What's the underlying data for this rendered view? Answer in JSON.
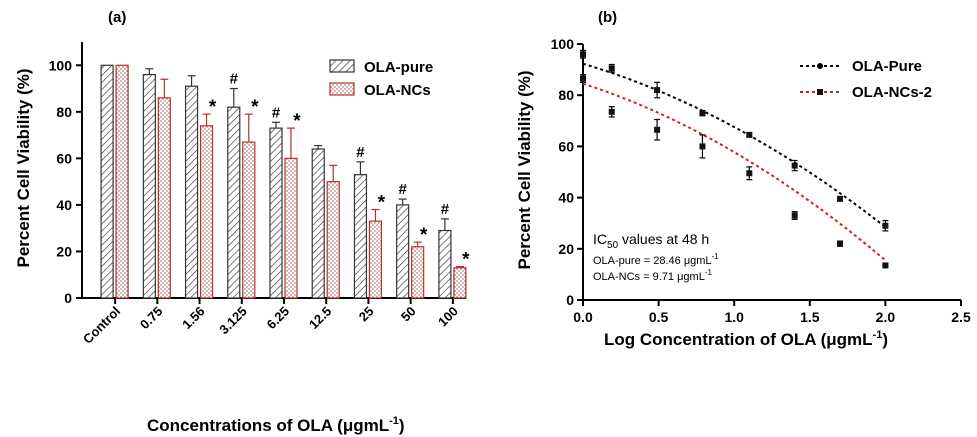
{
  "colors": {
    "pure": "#333333",
    "ncs": "#b3312a",
    "ncs_dash": "#d62020",
    "axis": "#000000"
  },
  "chart_data": [
    {
      "panel_label": "(a)",
      "type": "bar",
      "ylabel": "Percent Cell Viability (%)",
      "xlabel_line": "Concentrations of OLA (μgmL⁻¹)",
      "xlabel_parts": {
        "main": "Concentrations of OLA (",
        "mu": "μ",
        "unit": "gmL",
        "sup": "-1",
        "close": ")"
      },
      "ylim": [
        0,
        110
      ],
      "yticks": [
        "0",
        "20",
        "40",
        "60",
        "80",
        "100"
      ],
      "categories": [
        "Control",
        "0.75",
        "1.56",
        "3.125",
        "6.25",
        "12.5",
        "25",
        "50",
        "100"
      ],
      "legend_position": "top-right",
      "series": [
        {
          "name": "OLA-pure",
          "pattern": "hatch",
          "values": [
            100,
            96,
            91,
            82,
            73,
            64,
            53,
            40,
            29
          ],
          "errors": [
            0,
            2.5,
            4.5,
            8,
            2.5,
            1.5,
            5.5,
            2.5,
            5
          ],
          "markers": [
            "",
            "",
            "",
            "#",
            "#",
            "",
            "#",
            "#",
            "#"
          ]
        },
        {
          "name": "OLA-NCs",
          "pattern": "dots",
          "values": [
            100,
            86,
            74,
            67,
            60,
            50,
            33,
            22,
            13
          ],
          "errors": [
            0,
            8,
            5,
            12,
            13,
            7,
            5,
            2,
            0.5
          ],
          "markers": [
            "",
            "",
            "*",
            "*",
            "*",
            "",
            "*",
            "*",
            "*"
          ]
        }
      ]
    },
    {
      "panel_label": "(b)",
      "type": "line",
      "ylabel": "Percent Cell Viability (%)",
      "xlabel_parts": {
        "main": "Log Concentration of OLA (",
        "mu": "μ",
        "unit": "gmL",
        "sup": "-1",
        "close": ")"
      },
      "xlim": [
        0.0,
        2.5
      ],
      "ylim": [
        0,
        100
      ],
      "xticks": [
        "0.0",
        "0.5",
        "1.0",
        "1.5",
        "2.0",
        "2.5"
      ],
      "yticks": [
        "0",
        "20",
        "40",
        "60",
        "80",
        "100"
      ],
      "legend_position": "top-right",
      "annotation": {
        "title_main": "IC",
        "title_sub": "50",
        "title_rest": " values at 48 h",
        "line1_main": "OLA-pure = 28.46 ",
        "line2_main": "OLA-NCs = 9.71 ",
        "mu": "μ",
        "unit": "gmL",
        "sup": "-1"
      },
      "series": [
        {
          "name": "OLA-Pure",
          "points": [
            {
              "x": 0.0,
              "y": 96,
              "err": 1.5
            },
            {
              "x": 0.19,
              "y": 90.5,
              "err": 1.5
            },
            {
              "x": 0.49,
              "y": 82,
              "err": 3
            },
            {
              "x": 0.79,
              "y": 73,
              "err": 1
            },
            {
              "x": 1.1,
              "y": 64.5,
              "err": 0.8
            },
            {
              "x": 1.4,
              "y": 52.5,
              "err": 2
            },
            {
              "x": 1.7,
              "y": 39.5,
              "err": 0.8
            },
            {
              "x": 2.0,
              "y": 29,
              "err": 2
            }
          ],
          "fit": [
            92.3,
            28.5
          ]
        },
        {
          "name": "OLA-NCs-2",
          "points": [
            {
              "x": 0.0,
              "y": 86.5,
              "err": 1.5
            },
            {
              "x": 0.19,
              "y": 73.5,
              "err": 2
            },
            {
              "x": 0.49,
              "y": 66.5,
              "err": 4
            },
            {
              "x": 0.79,
              "y": 60,
              "err": 4.5
            },
            {
              "x": 1.1,
              "y": 49.5,
              "err": 2.5
            },
            {
              "x": 1.4,
              "y": 33,
              "err": 1.5
            },
            {
              "x": 1.7,
              "y": 22,
              "err": 1
            },
            {
              "x": 2.0,
              "y": 13.5,
              "err": 0.5
            }
          ],
          "fit": [
            84.5,
            15.5
          ]
        }
      ]
    }
  ]
}
